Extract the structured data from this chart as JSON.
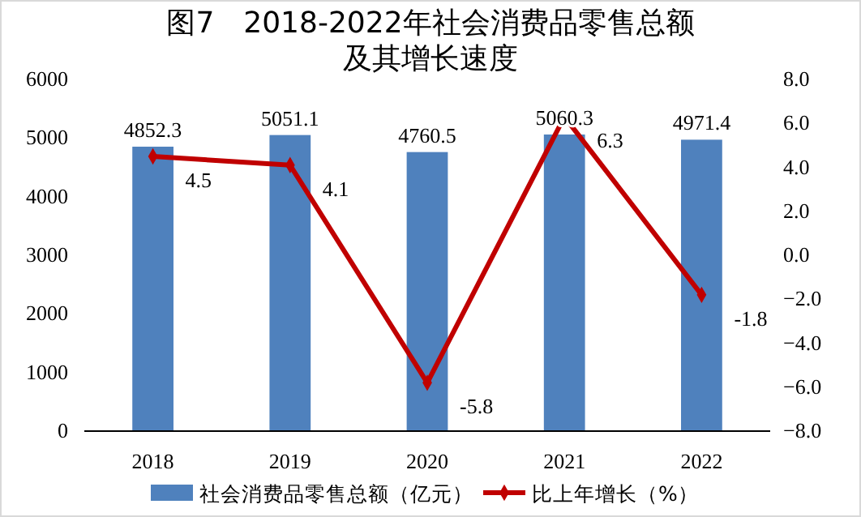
{
  "chart_data": {
    "type": "bar",
    "title": "图7　2018-2022年社会消费品零售总额及其增长速度",
    "categories": [
      "2018",
      "2019",
      "2020",
      "2021",
      "2022"
    ],
    "series": [
      {
        "name": "社会消费品零售总额（亿元）",
        "color": "#4f81bd",
        "values": [
          4852.3,
          5051.1,
          4760.5,
          5060.3,
          4971.4
        ]
      },
      {
        "name": "比上年增长（%）",
        "type": "line",
        "axis": "y2",
        "color": "#c00000",
        "marker": "diamond",
        "values": [
          4.5,
          4.1,
          -5.8,
          6.3,
          -1.8
        ]
      }
    ],
    "ylim": [
      0,
      6000
    ],
    "yticks": [
      0,
      1000,
      2000,
      3000,
      4000,
      5000,
      6000
    ],
    "y2lim": [
      -8,
      8
    ],
    "y2ticks": [
      {
        "value": -8,
        "label": "−8.0"
      },
      {
        "value": -6,
        "label": "−6.0"
      },
      {
        "value": -4,
        "label": "−4.0"
      },
      {
        "value": -2,
        "label": "−2.0"
      },
      {
        "value": 0,
        "label": "0.0"
      },
      {
        "value": 2,
        "label": "2.0"
      },
      {
        "value": 4,
        "label": "4.0"
      },
      {
        "value": 6,
        "label": "6.0"
      },
      {
        "value": 8,
        "label": "8.0"
      }
    ],
    "data_labels": true,
    "legend": "bottom",
    "grid": false
  }
}
